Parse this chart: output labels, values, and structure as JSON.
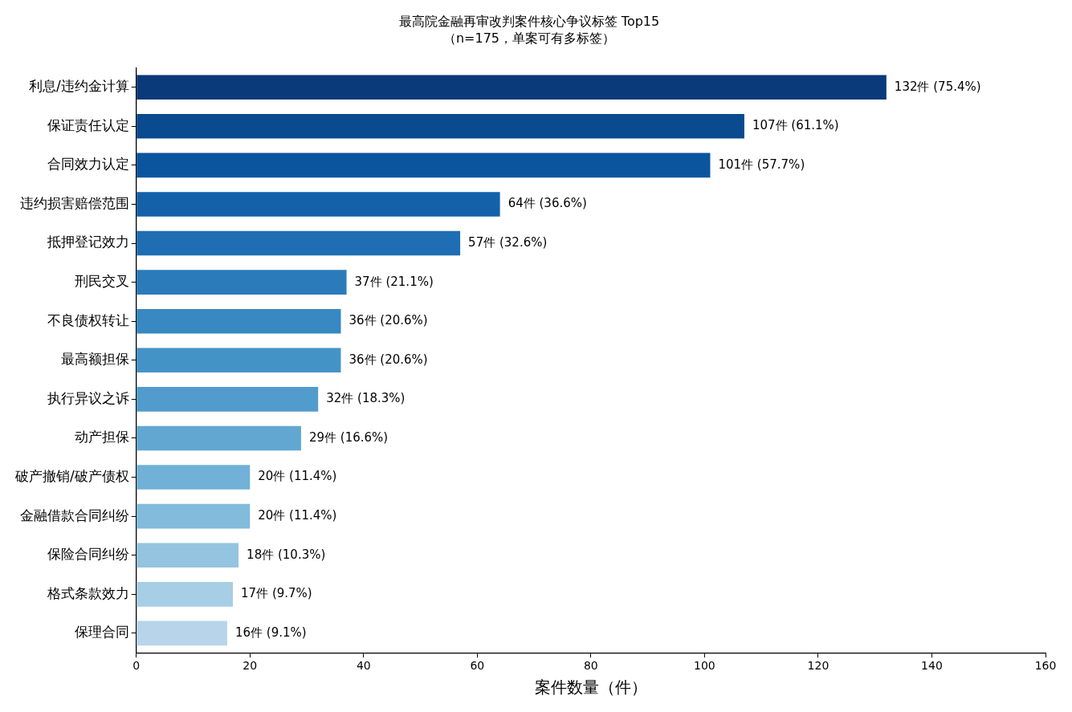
{
  "chart_data": {
    "type": "bar",
    "orientation": "horizontal",
    "title": "最高院金融再审改判案件核心争议标签 Top15",
    "subtitle": "（n=175，单案可有多标签）",
    "xlabel": "案件数量（件）",
    "categories": [
      "利息/违约金计算",
      "保证责任认定",
      "合同效力认定",
      "违约损害赔偿范围",
      "抵押登记效力",
      "刑民交叉",
      "不良债权转让",
      "最高额担保",
      "执行异议之诉",
      "动产担保",
      "破产撤销/破产债权",
      "金融借款合同纠纷",
      "保险合同纠纷",
      "格式条款效力",
      "保理合同"
    ],
    "values": [
      132,
      107,
      101,
      64,
      57,
      37,
      36,
      36,
      32,
      29,
      20,
      20,
      18,
      17,
      16
    ],
    "value_labels": [
      "132件 (75.4%)",
      "107件 (61.1%)",
      "101件 (57.7%)",
      "64件 (36.6%)",
      "57件 (32.6%)",
      "37件 (21.1%)",
      "36件 (20.6%)",
      "36件 (20.6%)",
      "32件 (18.3%)",
      "29件 (16.6%)",
      "20件 (11.4%)",
      "20件 (11.4%)",
      "18件 (10.3%)",
      "17件 (9.7%)",
      "16件 (9.1%)"
    ],
    "colors": [
      "#0a3a7a",
      "#0a4a8f",
      "#0b559f",
      "#1561a9",
      "#1f6eb3",
      "#2b7bba",
      "#3888c1",
      "#4493c7",
      "#519ccc",
      "#61a7d2",
      "#71b1d7",
      "#82bbdb",
      "#94c4df",
      "#a6cee4",
      "#b7d4ea"
    ],
    "xlim": [
      0,
      160
    ],
    "xticks": [
      0,
      20,
      40,
      60,
      80,
      100,
      120,
      140,
      160
    ],
    "grid": false,
    "legend": false
  }
}
